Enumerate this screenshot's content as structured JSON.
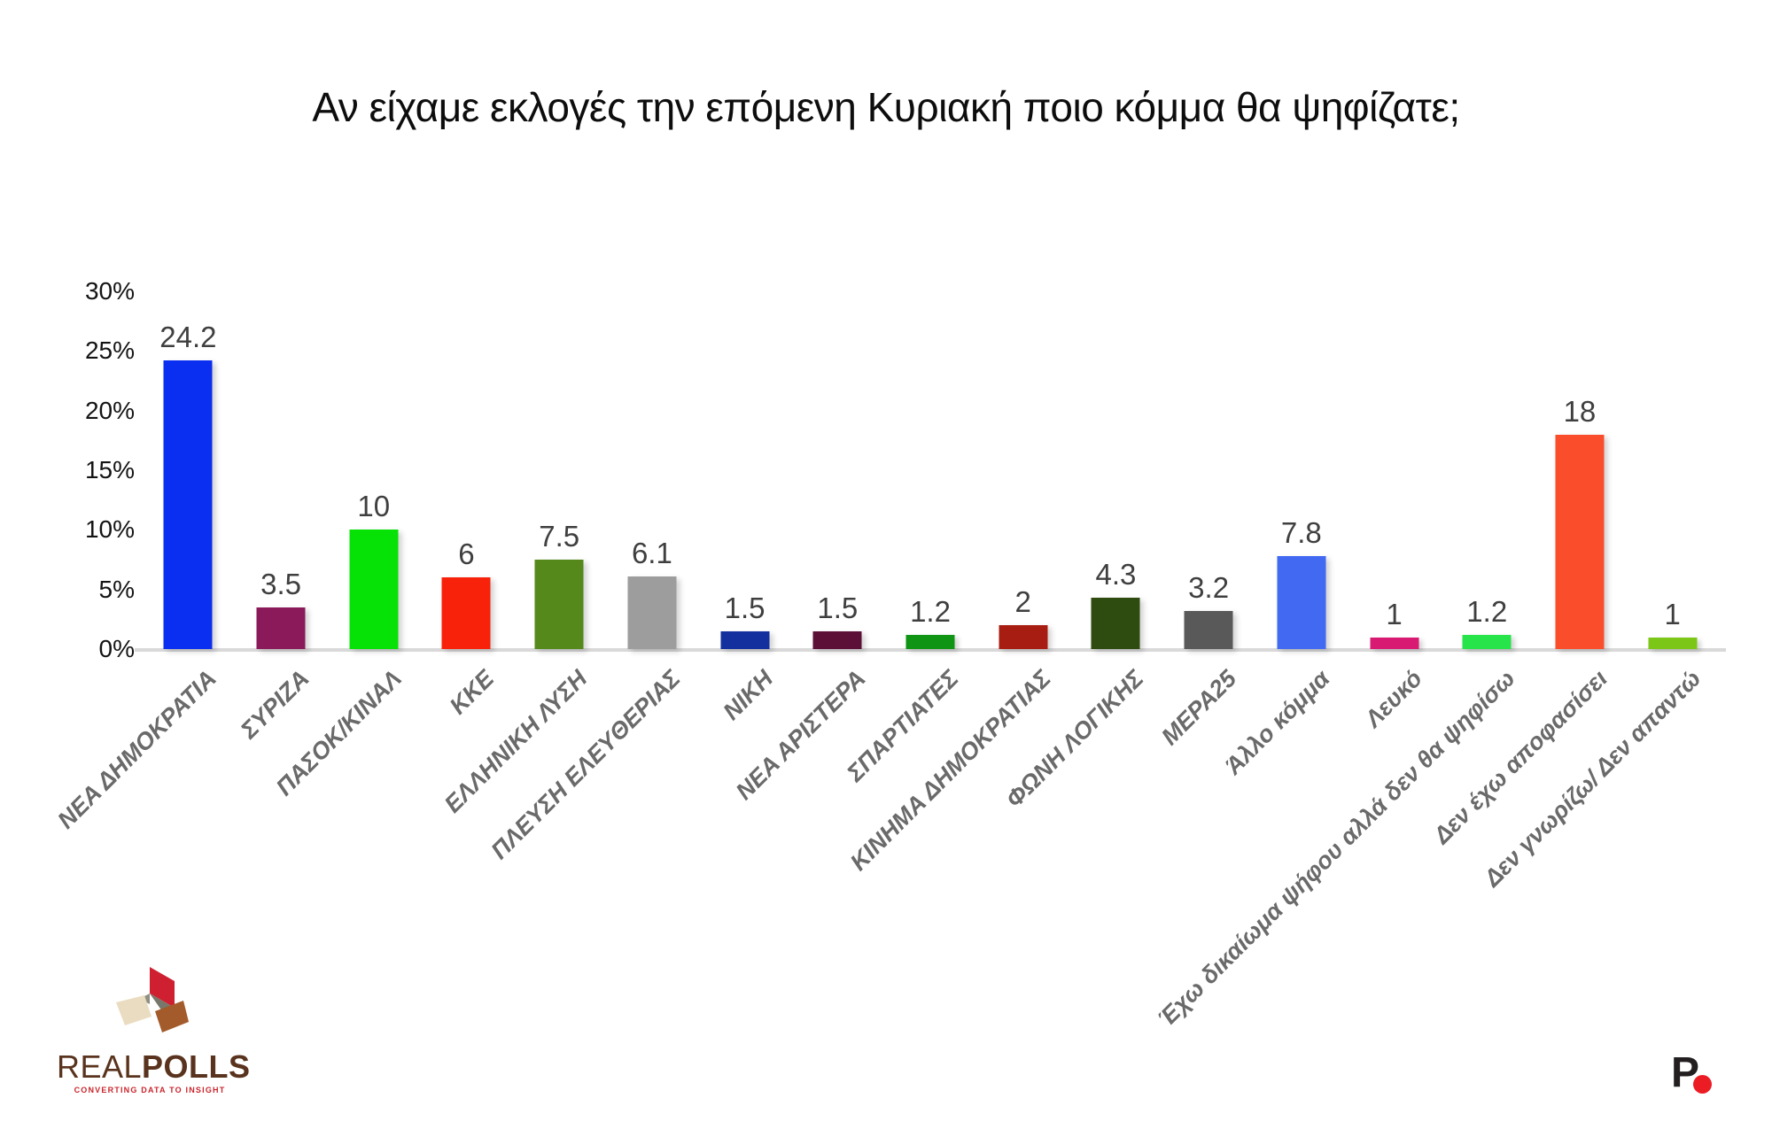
{
  "title": "Αν είχαμε εκλογές την επόμενη Κυριακή ποιο κόμμα θα ψηφίζατε;",
  "chart_data": {
    "type": "bar",
    "title": "Αν είχαμε εκλογές την επόμενη Κυριακή ποιο κόμμα θα ψηφίζατε;",
    "categories": [
      "ΝΕΑ ΔΗΜΟΚΡΑΤΙΑ",
      "ΣΥΡΙΖΑ",
      "ΠΑΣΟΚ/ΚΙΝΑΛ",
      "ΚΚΕ",
      "ΕΛΛΗΝΙΚΗ ΛΥΣΗ",
      "ΠΛΕΥΣΗ ΕΛΕΥΘΕΡΙΑΣ",
      "ΝΙΚΗ",
      "ΝΕΑ ΑΡΙΣΤΕΡΑ",
      "ΣΠΑΡΤΙΑΤΕΣ",
      "ΚΙΝΗΜΑ ΔΗΜΟΚΡΑΤΙΑΣ",
      "ΦΩΝΗ ΛΟΓΙΚΗΣ",
      "ΜΕΡΑ25",
      "Άλλο κόμμα",
      "Λευκό",
      "Έχω δικαίωμα ψήφου αλλά δεν θα ψηφίσω",
      "Δεν έχω αποφασίσει",
      "Δεν γνωρίζω/ Δεν απαντώ"
    ],
    "values": [
      24.2,
      3.5,
      10,
      6,
      7.5,
      6.1,
      1.5,
      1.5,
      1.2,
      2,
      4.3,
      3.2,
      7.8,
      1,
      1.2,
      18,
      1
    ],
    "bar_colors": [
      "#0B2FF0",
      "#8A1A59",
      "#06E206",
      "#F8220A",
      "#55891B",
      "#9D9D9D",
      "#14309E",
      "#5C1038",
      "#0F9414",
      "#A81D12",
      "#2E4B10",
      "#595959",
      "#4169F1",
      "#D81A72",
      "#27E44B",
      "#F94D2C",
      "#7CC618"
    ],
    "xlabel": "",
    "ylabel": "",
    "ylim": [
      0,
      30
    ],
    "ytick_values": [
      30,
      25,
      20,
      15,
      10,
      5,
      0
    ],
    "ytick_labels": [
      "30%",
      "25%",
      "20%",
      "15%",
      "10%",
      "5%",
      "0%"
    ],
    "grid": false,
    "legend": false,
    "value_labels_shown": true,
    "value_label_color": "#3F3F3F",
    "category_label_color": "#6A6A6A",
    "axis_line_color": "#D9D9D9"
  },
  "branding": {
    "realpolls": {
      "name_light": "REAL",
      "name_bold": "POLLS",
      "tagline": "CONVERTING DATA TO INSIGHT",
      "text_color": "#59331D",
      "tagline_color": "#C9252C",
      "cube_red": "#CE2030",
      "cube_cream": "#EADCC0",
      "cube_brown": "#A35B2B"
    },
    "p_logo": {
      "letter": "P",
      "letter_color": "#231F20",
      "dot_color": "#EC1C24"
    }
  }
}
